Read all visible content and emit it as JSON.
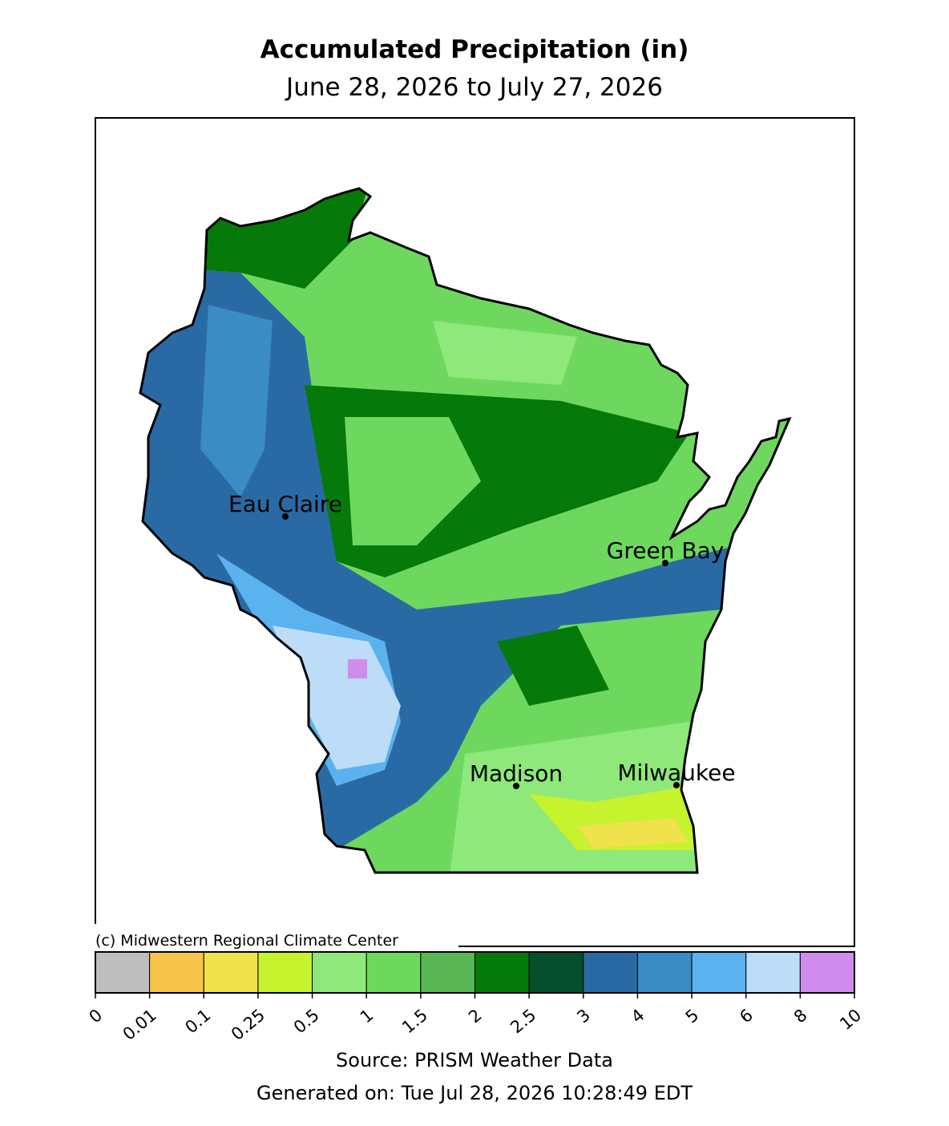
{
  "title": "Accumulated Precipitation (in)",
  "subtitle": "June 28, 2026 to July 27, 2026",
  "cities": [
    {
      "name": "Eau Claire"
    },
    {
      "name": "Green Bay"
    },
    {
      "name": "Madison"
    },
    {
      "name": "Milwaukee"
    }
  ],
  "copyright": "(c) Midwestern Regional Climate Center",
  "legend": {
    "ticks": [
      0,
      0.01,
      0.1,
      0.25,
      0.5,
      1,
      1.5,
      2,
      2.5,
      3,
      4,
      5,
      6,
      8,
      10
    ],
    "colors": [
      "#bebebe",
      "#f7c34a",
      "#efe24a",
      "#c6f22e",
      "#8ee87a",
      "#6ed85e",
      "#5ab654",
      "#057a0a",
      "#064e2e",
      "#2a6aa4",
      "#3a8cc4",
      "#5ab2ee",
      "#bcdcf8",
      "#d08cec"
    ]
  },
  "source": "Source: PRISM Weather Data",
  "generated": "Generated on: Tue Jul 28, 2026 10:28:49 EDT"
}
